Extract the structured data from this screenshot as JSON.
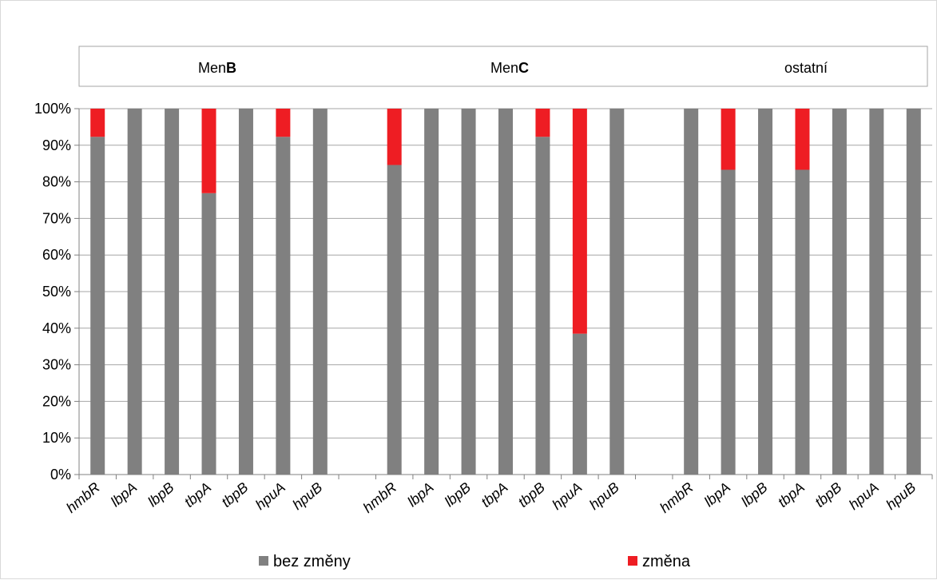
{
  "chart_data": {
    "type": "bar",
    "stacked": true,
    "groups": [
      "MenB",
      "MenC",
      "ostatní"
    ],
    "categories": [
      "hmbR",
      "lbpA",
      "lbpB",
      "tbpA",
      "tbpB",
      "hpuA",
      "hpuB"
    ],
    "group_title_parts": [
      {
        "prefix": "Men",
        "bold": "B"
      },
      {
        "prefix": "Men",
        "bold": "C"
      },
      {
        "prefix": "ostatní",
        "bold": ""
      }
    ],
    "series": [
      {
        "name": "bez změny",
        "color": "#808080",
        "values": [
          [
            92.3,
            100,
            100,
            76.9,
            100,
            92.3,
            100
          ],
          [
            84.6,
            100,
            100,
            100,
            92.3,
            38.5,
            100
          ],
          [
            100,
            83.3,
            100,
            83.3,
            100,
            100,
            100
          ]
        ]
      },
      {
        "name": "změna",
        "color": "#ee1d23",
        "values": [
          [
            7.7,
            0,
            0,
            23.1,
            0,
            7.7,
            0
          ],
          [
            15.4,
            0,
            0,
            0,
            7.7,
            61.5,
            0
          ],
          [
            0,
            16.7,
            0,
            16.7,
            0,
            0,
            0
          ]
        ]
      }
    ],
    "y_ticks": [
      "0%",
      "10%",
      "20%",
      "30%",
      "40%",
      "50%",
      "60%",
      "70%",
      "80%",
      "90%",
      "100%"
    ],
    "ylim": [
      0,
      100
    ],
    "legend_position": "bottom",
    "grid": true
  }
}
